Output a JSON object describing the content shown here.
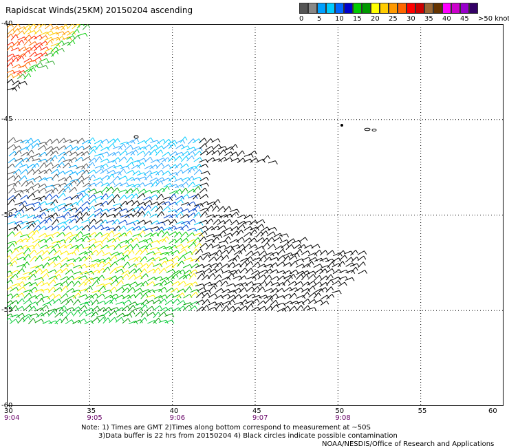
{
  "title": "Rapidscat Winds(25KM) 20150204 ascending",
  "legend": {
    "colors": [
      "#555555",
      "#888888",
      "#00a0ff",
      "#00ccff",
      "#0066ff",
      "#0000cc",
      "#00cc00",
      "#009900",
      "#ffff00",
      "#ffcc00",
      "#ff9900",
      "#ff6600",
      "#ff0000",
      "#cc0000",
      "#996633",
      "#663300",
      "#ff00ff",
      "#cc00cc",
      "#9900cc",
      "#330066"
    ],
    "labels": [
      "0",
      "5",
      "10",
      "15",
      "20",
      "25",
      "30",
      "35",
      "40",
      "45",
      ">50 knots"
    ]
  },
  "axes": {
    "x_labels": [
      "30",
      "35",
      "40",
      "45",
      "50",
      "55",
      "60"
    ],
    "y_labels": [
      "-40",
      "-45",
      "-50",
      "-55",
      "-60"
    ],
    "time_labels": [
      "9:04",
      "9:05",
      "9:06",
      "9:07",
      "9:08"
    ]
  },
  "map": {
    "lon_range": [
      30,
      60
    ],
    "lat_range": [
      -40,
      -60
    ],
    "grid": "dotted",
    "swaths": [
      {
        "name_hint": "upper-left-swath",
        "colors": [
          "#ff0000",
          "#ff6600",
          "#ffcc00",
          "#00cc00",
          "#000000"
        ]
      },
      {
        "name_hint": "main-swath",
        "colors": [
          "#00ccff",
          "#0066ff",
          "#00cc00",
          "#ffff00",
          "#000000",
          "#555555"
        ]
      }
    ]
  },
  "notes": {
    "line1": "Note: 1) Times are GMT 2)Times along bottom correspond to measurement at ~50S",
    "line2": "3)Data buffer is 22 hrs from 20150204 4) Black circles indicate possible contamination",
    "line3": "NOAA/NESDIS/Office of Research and Applications"
  }
}
